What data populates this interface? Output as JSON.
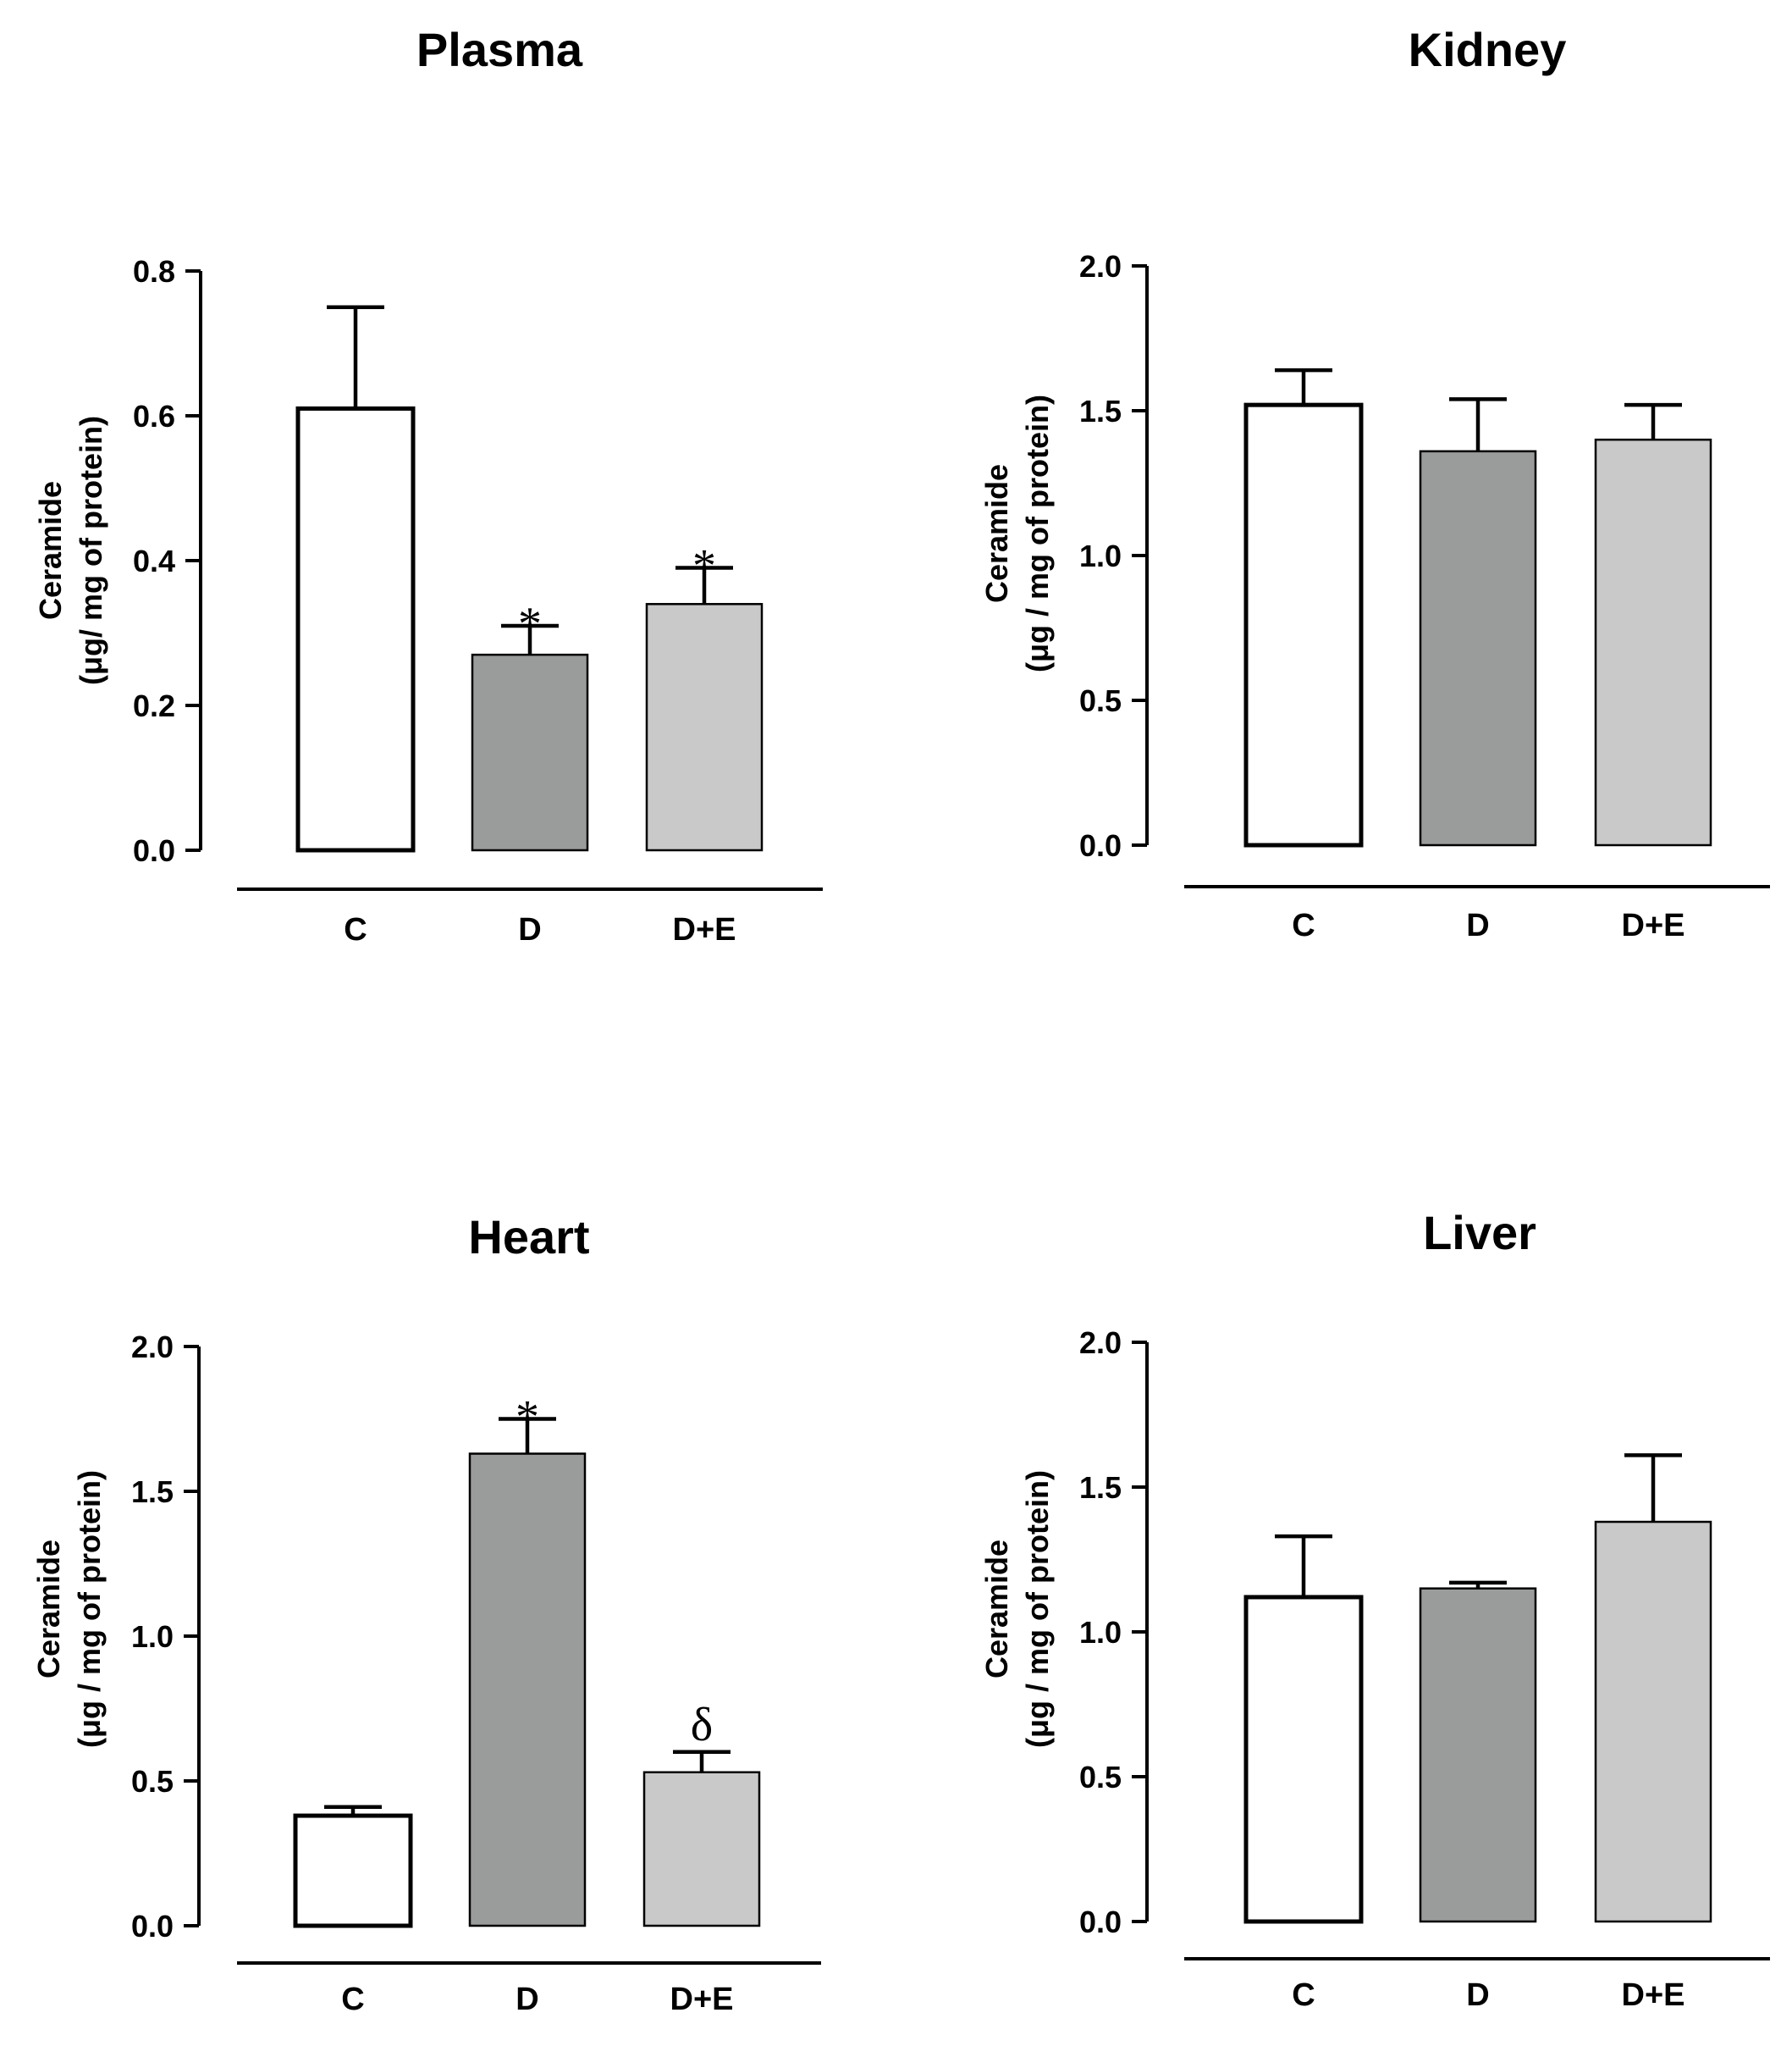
{
  "chart_data": [
    {
      "type": "bar",
      "title": "Plasma",
      "categories": [
        "C",
        "D",
        "D+E"
      ],
      "values": [
        0.61,
        0.27,
        0.34
      ],
      "errors": [
        0.14,
        0.04,
        0.05
      ],
      "annotations": [
        "",
        "*",
        "*"
      ],
      "ylim": [
        0,
        0.8
      ],
      "yticks": [
        "0.0",
        "0.2",
        "0.4",
        "0.6",
        "0.8"
      ],
      "ylabel_line1": "Ceramide",
      "ylabel_line2": "(μg/ mg of protein)",
      "xlabel": ""
    },
    {
      "type": "bar",
      "title": "Kidney",
      "categories": [
        "C",
        "D",
        "D+E"
      ],
      "values": [
        1.52,
        1.36,
        1.4
      ],
      "errors": [
        0.12,
        0.18,
        0.12
      ],
      "annotations": [
        "",
        "",
        ""
      ],
      "ylim": [
        0,
        2.0
      ],
      "yticks": [
        "0.0",
        "0.5",
        "1.0",
        "1.5",
        "2.0"
      ],
      "ylabel_line1": "Ceramide",
      "ylabel_line2": "(μg / mg of protein)",
      "xlabel": ""
    },
    {
      "type": "bar",
      "title": "Heart",
      "categories": [
        "C",
        "D",
        "D+E"
      ],
      "values": [
        0.38,
        1.63,
        0.53
      ],
      "errors": [
        0.03,
        0.12,
        0.07
      ],
      "annotations": [
        "",
        "*",
        "δ"
      ],
      "ylim": [
        0,
        2.0
      ],
      "yticks": [
        "0.0",
        "0.5",
        "1.0",
        "1.5",
        "2.0"
      ],
      "ylabel_line1": "Ceramide",
      "ylabel_line2": "(μg / mg of protein)",
      "xlabel": ""
    },
    {
      "type": "bar",
      "title": "Liver",
      "categories": [
        "C",
        "D",
        "D+E"
      ],
      "values": [
        1.12,
        1.15,
        1.38
      ],
      "errors": [
        0.21,
        0.02,
        0.23
      ],
      "annotations": [
        "",
        "",
        ""
      ],
      "ylim": [
        0,
        2.0
      ],
      "yticks": [
        "0.0",
        "0.5",
        "1.0",
        "1.5",
        "2.0"
      ],
      "ylabel_line1": "Ceramide",
      "ylabel_line2": "(μg / mg of protein)",
      "xlabel": ""
    }
  ],
  "colors": {
    "bar_fills": [
      "#ffffff",
      "#9a9c9b",
      "#c8c9c8"
    ],
    "stroke": "#000000"
  }
}
